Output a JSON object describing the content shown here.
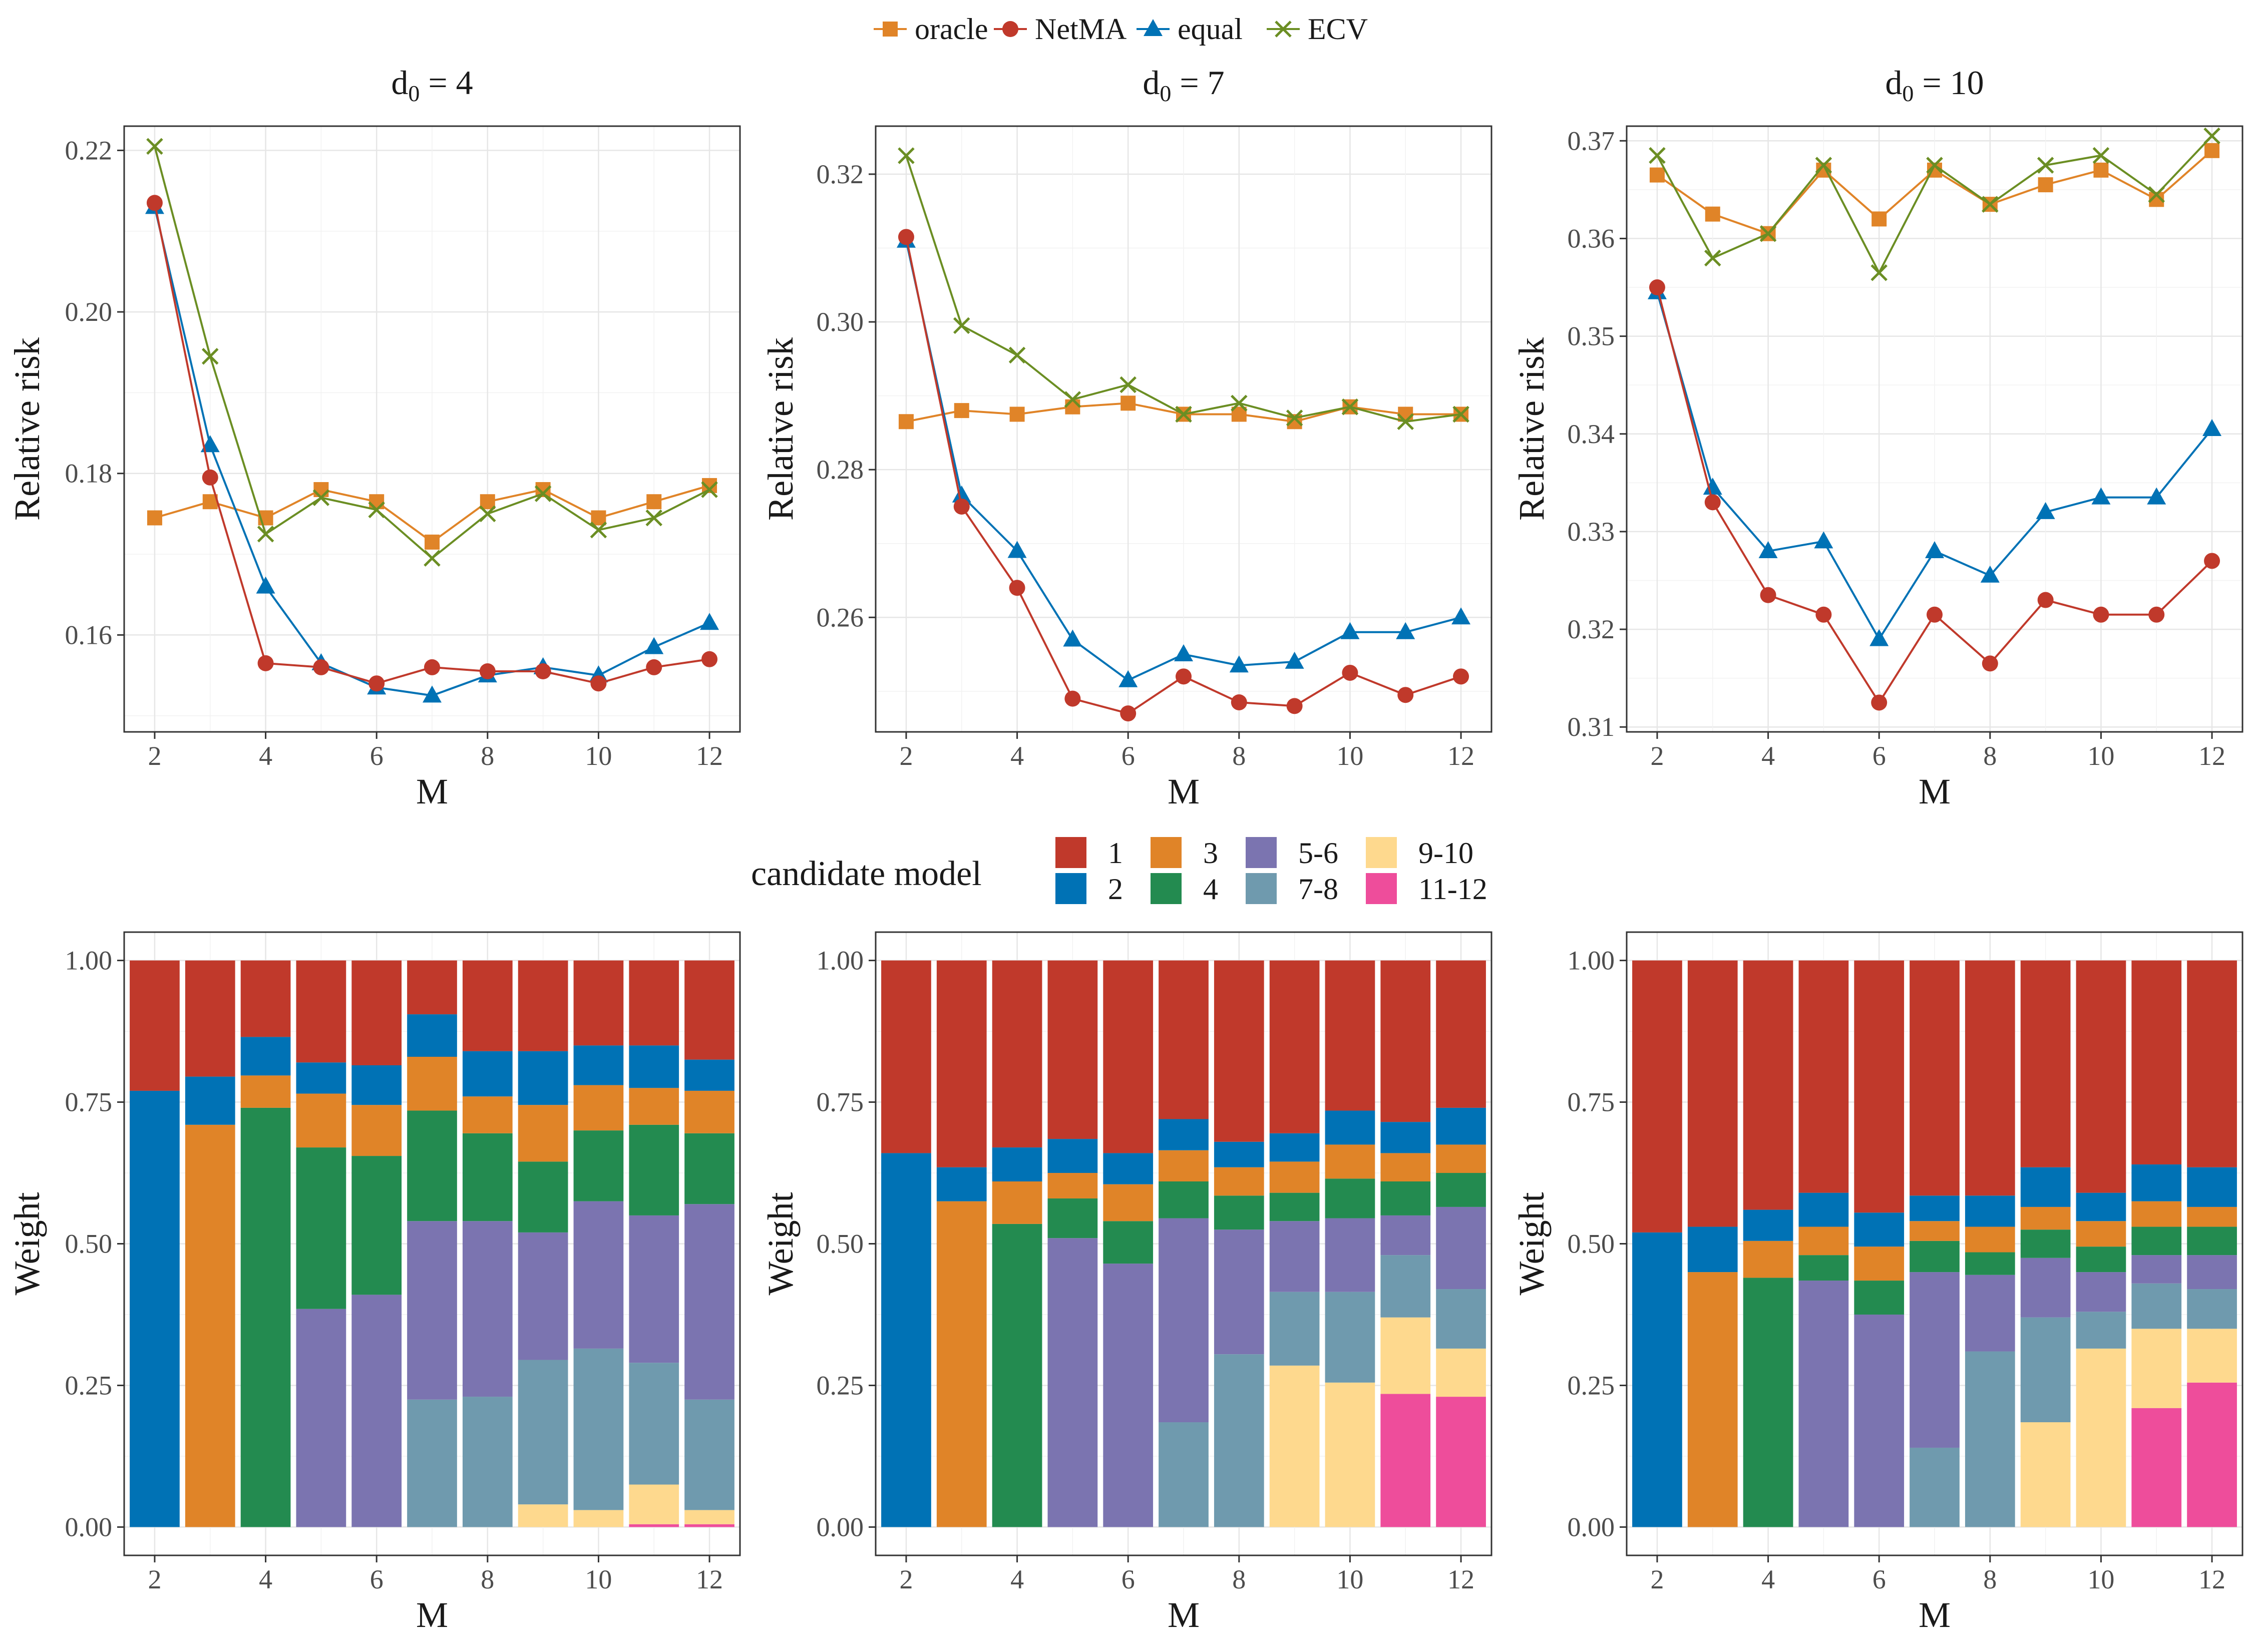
{
  "chart_data": {
    "type": "line+stacked-bar",
    "x_label": "M",
    "x_values": [
      2,
      3,
      4,
      5,
      6,
      7,
      8,
      9,
      10,
      11,
      12
    ],
    "x_ticks": [
      2,
      4,
      6,
      8,
      10,
      12
    ],
    "top_legend": {
      "entries": [
        {
          "key": "oracle",
          "label": "oracle",
          "color": "#E08428",
          "marker": "square"
        },
        {
          "key": "netma",
          "label": "NetMA",
          "color": "#C0392B",
          "marker": "circle"
        },
        {
          "key": "equal",
          "label": "equal",
          "color": "#0072B5",
          "marker": "triangle"
        },
        {
          "key": "ecv",
          "label": "ECV",
          "color": "#6B8E23",
          "marker": "cross"
        }
      ]
    },
    "risk_panels": [
      {
        "title_base": "d",
        "title_sub": "0",
        "title_rest": " = 4",
        "ylabel": "Relative risk",
        "ylim": [
          0.148,
          0.223
        ],
        "yticks": [
          0.16,
          0.18,
          0.2,
          0.22
        ],
        "ytick_labels": [
          "0.16",
          "0.18",
          "0.20",
          "0.22"
        ],
        "series": {
          "oracle": [
            0.1745,
            0.1765,
            0.1745,
            0.178,
            0.1765,
            0.1715,
            0.1765,
            0.178,
            0.1745,
            0.1765,
            0.1785
          ],
          "netma": [
            0.2135,
            0.1795,
            0.1565,
            0.156,
            0.154,
            0.156,
            0.1555,
            0.1555,
            0.154,
            0.156,
            0.157
          ],
          "equal": [
            0.213,
            0.1835,
            0.166,
            0.1565,
            0.1535,
            0.1525,
            0.155,
            0.156,
            0.155,
            0.1585,
            0.1615
          ],
          "ecv": [
            0.2205,
            0.1945,
            0.1725,
            0.177,
            0.1755,
            0.1695,
            0.175,
            0.1775,
            0.173,
            0.1745,
            0.178
          ]
        }
      },
      {
        "title_base": "d",
        "title_sub": "0",
        "title_rest": " = 7",
        "ylabel": "Relative risk",
        "ylim": [
          0.2445,
          0.3265
        ],
        "yticks": [
          0.26,
          0.28,
          0.3,
          0.32
        ],
        "ytick_labels": [
          "0.26",
          "0.28",
          "0.30",
          "0.32"
        ],
        "series": {
          "oracle": [
            0.2865,
            0.288,
            0.2875,
            0.2885,
            0.289,
            0.2875,
            0.2875,
            0.2865,
            0.2885,
            0.2875,
            0.2875
          ],
          "netma": [
            0.3115,
            0.275,
            0.264,
            0.249,
            0.247,
            0.252,
            0.2485,
            0.248,
            0.2525,
            0.2495,
            0.252
          ],
          "equal": [
            0.311,
            0.2765,
            0.269,
            0.257,
            0.2515,
            0.255,
            0.2535,
            0.254,
            0.258,
            0.258,
            0.26
          ],
          "ecv": [
            0.3225,
            0.2995,
            0.2955,
            0.2895,
            0.2915,
            0.2875,
            0.289,
            0.287,
            0.2885,
            0.2865,
            0.2875
          ]
        }
      },
      {
        "title_base": "d",
        "title_sub": "0",
        "title_rest": " = 10",
        "ylabel": "Relative risk",
        "ylim": [
          0.3095,
          0.3715
        ],
        "yticks": [
          0.31,
          0.32,
          0.33,
          0.34,
          0.35,
          0.36,
          0.37
        ],
        "ytick_labels": [
          "0.31",
          "0.32",
          "0.33",
          "0.34",
          "0.35",
          "0.36",
          "0.37"
        ],
        "series": {
          "oracle": [
            0.3665,
            0.3625,
            0.3605,
            0.367,
            0.362,
            0.367,
            0.3635,
            0.3655,
            0.367,
            0.364,
            0.369
          ],
          "netma": [
            0.355,
            0.333,
            0.3235,
            0.3215,
            0.3125,
            0.3215,
            0.3165,
            0.323,
            0.3215,
            0.3215,
            0.327
          ],
          "equal": [
            0.3545,
            0.3345,
            0.328,
            0.329,
            0.319,
            0.328,
            0.3255,
            0.332,
            0.3335,
            0.3335,
            0.3405
          ],
          "ecv": [
            0.3685,
            0.358,
            0.3605,
            0.3675,
            0.3565,
            0.3675,
            0.3635,
            0.3675,
            0.3685,
            0.3645,
            0.3705
          ]
        }
      }
    ],
    "bar_legend": {
      "title": "candidate model",
      "entries": [
        {
          "key": "c1",
          "label": "1",
          "color": "#C0392B"
        },
        {
          "key": "c2",
          "label": "2",
          "color": "#0072B5"
        },
        {
          "key": "c3",
          "label": "3",
          "color": "#E08428"
        },
        {
          "key": "c4",
          "label": "4",
          "color": "#238B50"
        },
        {
          "key": "c56",
          "label": "5-6",
          "color": "#7B74B0"
        },
        {
          "key": "c78",
          "label": "7-8",
          "color": "#6F9AAE"
        },
        {
          "key": "c910",
          "label": "9-10",
          "color": "#FED98E"
        },
        {
          "key": "c1112",
          "label": "11-12",
          "color": "#EE4D9B"
        }
      ]
    },
    "stack_order_bottom_to_top": [
      "c1112",
      "c910",
      "c78",
      "c56",
      "c4",
      "c3",
      "c2",
      "c1"
    ],
    "weight_panels": [
      {
        "ylabel": "Weight",
        "ylim": [
          0,
          1
        ],
        "yticks": [
          0,
          0.25,
          0.5,
          0.75,
          1.0
        ],
        "ytick_labels": [
          "0.00",
          "0.25",
          "0.50",
          "0.75",
          "1.00"
        ],
        "weights": {
          "c1": [
            0.23,
            0.205,
            0.135,
            0.18,
            0.185,
            0.095,
            0.16,
            0.16,
            0.15,
            0.15,
            0.175
          ],
          "c2": [
            0.77,
            0.085,
            0.068,
            0.055,
            0.07,
            0.075,
            0.08,
            0.095,
            0.07,
            0.075,
            0.055
          ],
          "c3": [
            0,
            0.71,
            0.057,
            0.095,
            0.09,
            0.095,
            0.065,
            0.1,
            0.08,
            0.065,
            0.075
          ],
          "c4": [
            0,
            0,
            0.74,
            0.285,
            0.245,
            0.195,
            0.155,
            0.125,
            0.125,
            0.16,
            0.125
          ],
          "c56": [
            0,
            0,
            0,
            0.385,
            0.41,
            0.315,
            0.31,
            0.225,
            0.26,
            0.26,
            0.345
          ],
          "c78": [
            0,
            0,
            0,
            0,
            0,
            0.225,
            0.23,
            0.255,
            0.285,
            0.215,
            0.195
          ],
          "c910": [
            0,
            0,
            0,
            0,
            0,
            0,
            0,
            0.04,
            0.03,
            0.07,
            0.025
          ],
          "c1112": [
            0,
            0,
            0,
            0,
            0,
            0,
            0,
            0,
            0,
            0.005,
            0.005
          ]
        }
      },
      {
        "ylabel": "Weight",
        "ylim": [
          0,
          1
        ],
        "yticks": [
          0,
          0.25,
          0.5,
          0.75,
          1.0
        ],
        "ytick_labels": [
          "0.00",
          "0.25",
          "0.50",
          "0.75",
          "1.00"
        ],
        "weights": {
          "c1": [
            0.34,
            0.365,
            0.33,
            0.315,
            0.34,
            0.28,
            0.32,
            0.305,
            0.265,
            0.285,
            0.26
          ],
          "c2": [
            0.66,
            0.06,
            0.06,
            0.06,
            0.055,
            0.055,
            0.045,
            0.05,
            0.06,
            0.055,
            0.065
          ],
          "c3": [
            0,
            0.575,
            0.075,
            0.045,
            0.065,
            0.055,
            0.05,
            0.055,
            0.06,
            0.05,
            0.05
          ],
          "c4": [
            0,
            0,
            0.535,
            0.07,
            0.075,
            0.065,
            0.06,
            0.05,
            0.07,
            0.06,
            0.06
          ],
          "c56": [
            0,
            0,
            0,
            0.51,
            0.465,
            0.36,
            0.22,
            0.125,
            0.13,
            0.07,
            0.145
          ],
          "c78": [
            0,
            0,
            0,
            0,
            0,
            0.185,
            0.305,
            0.13,
            0.16,
            0.11,
            0.105
          ],
          "c910": [
            0,
            0,
            0,
            0,
            0,
            0,
            0,
            0.285,
            0.255,
            0.135,
            0.085
          ],
          "c1112": [
            0,
            0,
            0,
            0,
            0,
            0,
            0,
            0,
            0,
            0.235,
            0.23
          ]
        }
      },
      {
        "ylabel": "Weight",
        "ylim": [
          0,
          1
        ],
        "yticks": [
          0,
          0.25,
          0.5,
          0.75,
          1.0
        ],
        "ytick_labels": [
          "0.00",
          "0.25",
          "0.50",
          "0.75",
          "1.00"
        ],
        "weights": {
          "c1": [
            0.48,
            0.47,
            0.44,
            0.41,
            0.445,
            0.415,
            0.415,
            0.365,
            0.41,
            0.36,
            0.365
          ],
          "c2": [
            0.52,
            0.08,
            0.055,
            0.06,
            0.06,
            0.045,
            0.055,
            0.07,
            0.05,
            0.065,
            0.07
          ],
          "c3": [
            0,
            0.45,
            0.065,
            0.05,
            0.06,
            0.035,
            0.045,
            0.04,
            0.045,
            0.045,
            0.035
          ],
          "c4": [
            0,
            0,
            0.44,
            0.045,
            0.06,
            0.055,
            0.04,
            0.05,
            0.045,
            0.05,
            0.05
          ],
          "c56": [
            0,
            0,
            0,
            0.435,
            0.375,
            0.31,
            0.135,
            0.105,
            0.07,
            0.05,
            0.06
          ],
          "c78": [
            0,
            0,
            0,
            0,
            0,
            0.14,
            0.31,
            0.185,
            0.065,
            0.08,
            0.07
          ],
          "c910": [
            0,
            0,
            0,
            0,
            0,
            0,
            0,
            0.185,
            0.315,
            0.14,
            0.095
          ],
          "c1112": [
            0,
            0,
            0,
            0,
            0,
            0,
            0,
            0,
            0,
            0.21,
            0.255
          ]
        }
      }
    ]
  }
}
